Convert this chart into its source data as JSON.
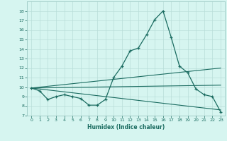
{
  "xlabel": "Humidex (Indice chaleur)",
  "bg_color": "#d6f5f0",
  "grid_color": "#b8ddd8",
  "line_color": "#1a6b60",
  "xlim": [
    -0.5,
    23.5
  ],
  "ylim": [
    7,
    19
  ],
  "xticks": [
    0,
    1,
    2,
    3,
    4,
    5,
    6,
    7,
    8,
    9,
    10,
    11,
    12,
    13,
    14,
    15,
    16,
    17,
    18,
    19,
    20,
    21,
    22,
    23
  ],
  "yticks": [
    7,
    8,
    9,
    10,
    11,
    12,
    13,
    14,
    15,
    16,
    17,
    18
  ],
  "series1_x": [
    0,
    1,
    2,
    3,
    4,
    5,
    6,
    7,
    8,
    9,
    10,
    11,
    12,
    13,
    14,
    15,
    16,
    17,
    18,
    19,
    20,
    21,
    22,
    23
  ],
  "series1_y": [
    9.9,
    9.6,
    8.7,
    9.0,
    9.2,
    9.0,
    8.8,
    8.1,
    8.1,
    8.7,
    11.0,
    12.2,
    13.8,
    14.1,
    15.5,
    17.1,
    18.0,
    15.2,
    12.2,
    11.5,
    9.8,
    9.2,
    9.0,
    7.4
  ],
  "series2_x": [
    0,
    23
  ],
  "series2_y": [
    9.9,
    7.6
  ],
  "series3_x": [
    0,
    23
  ],
  "series3_y": [
    9.9,
    10.2
  ],
  "series4_x": [
    0,
    23
  ],
  "series4_y": [
    9.9,
    12.0
  ]
}
